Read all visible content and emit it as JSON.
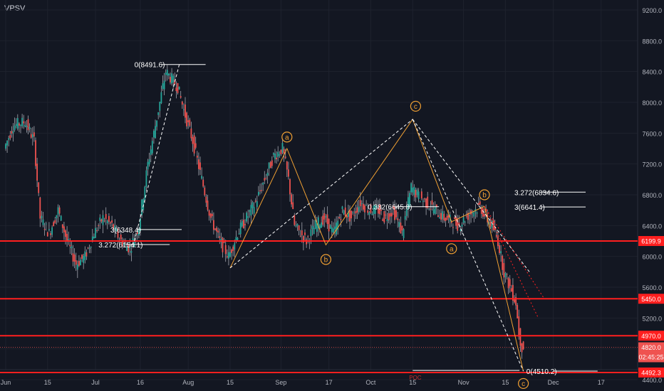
{
  "symbol": "VPSV",
  "colors": {
    "background": "#131722",
    "grid": "#1e222d",
    "up": "#26a69a",
    "down": "#ef5350",
    "wick": "#a3a6af",
    "level": "#ff1f1f",
    "wave": "#f0a033",
    "guide": "#ffffff",
    "poc": "#c03030"
  },
  "chart_data": {
    "type": "candlestick",
    "ylim": [
      4400,
      9200
    ],
    "y_ticks": [
      "9200.0",
      "8800.0",
      "8400.0",
      "8000.0",
      "7600.0",
      "7200.0",
      "6800.0",
      "6400.0",
      "6000.0",
      "5600.0",
      "5200.0",
      "4800.0",
      "4400.0"
    ],
    "x_ticks": [
      {
        "label": "Jun",
        "day": 0
      },
      {
        "label": "15",
        "day": 14
      },
      {
        "label": "Jul",
        "day": 30
      },
      {
        "label": "16",
        "day": 45
      },
      {
        "label": "Aug",
        "day": 61
      },
      {
        "label": "15",
        "day": 75
      },
      {
        "label": "Sep",
        "day": 92
      },
      {
        "label": "17",
        "day": 108
      },
      {
        "label": "Oct",
        "day": 122
      },
      {
        "label": "15",
        "day": 136
      },
      {
        "label": "Nov",
        "day": 153
      },
      {
        "label": "15",
        "day": 167
      },
      {
        "label": "Dec",
        "day": 183
      },
      {
        "label": "17",
        "day": 199
      }
    ],
    "price_path": [
      [
        0,
        7400
      ],
      [
        3,
        7700
      ],
      [
        7,
        7750
      ],
      [
        10,
        7500
      ],
      [
        12,
        6500
      ],
      [
        15,
        6300
      ],
      [
        18,
        6600
      ],
      [
        21,
        6200
      ],
      [
        24,
        5900
      ],
      [
        27,
        6000
      ],
      [
        30,
        6300
      ],
      [
        33,
        6500
      ],
      [
        36,
        6400
      ],
      [
        39,
        6200
      ],
      [
        42,
        6100
      ],
      [
        45,
        6400
      ],
      [
        48,
        7200
      ],
      [
        51,
        7800
      ],
      [
        54,
        8400
      ],
      [
        56,
        8300
      ],
      [
        58,
        8200
      ],
      [
        60,
        7900
      ],
      [
        63,
        7500
      ],
      [
        66,
        7000
      ],
      [
        69,
        6500
      ],
      [
        72,
        6200
      ],
      [
        75,
        6000
      ],
      [
        78,
        6300
      ],
      [
        81,
        6500
      ],
      [
        84,
        6700
      ],
      [
        87,
        7000
      ],
      [
        90,
        7300
      ],
      [
        93,
        7400
      ],
      [
        95,
        7000
      ],
      [
        97,
        6400
      ],
      [
        99,
        6300
      ],
      [
        101,
        6200
      ],
      [
        104,
        6400
      ],
      [
        107,
        6500
      ],
      [
        110,
        6300
      ],
      [
        113,
        6600
      ],
      [
        116,
        6500
      ],
      [
        119,
        6700
      ],
      [
        122,
        6600
      ],
      [
        125,
        6600
      ],
      [
        127,
        6500
      ],
      [
        130,
        6600
      ],
      [
        133,
        6300
      ],
      [
        135,
        6700
      ],
      [
        136,
        6900
      ],
      [
        138,
        6800
      ],
      [
        141,
        6700
      ],
      [
        144,
        6600
      ],
      [
        147,
        6500
      ],
      [
        150,
        6450
      ],
      [
        152,
        6400
      ],
      [
        154,
        6500
      ],
      [
        157,
        6600
      ],
      [
        159,
        6650
      ],
      [
        161,
        6500
      ],
      [
        163,
        6400
      ],
      [
        165,
        6200
      ],
      [
        167,
        5800
      ],
      [
        169,
        5600
      ],
      [
        171,
        5400
      ],
      [
        172,
        5000
      ],
      [
        173,
        4820
      ]
    ],
    "horizontal_levels": [
      {
        "value": 6199.9,
        "label": "6199.9"
      },
      {
        "value": 5450.0,
        "label": "5450.0"
      },
      {
        "value": 4970.0,
        "label": "4970.0"
      },
      {
        "value": 4492.3,
        "label": "4492.3"
      }
    ],
    "last_price": {
      "value": 4820.0,
      "label": "4820.0",
      "countdown": "02:45:25"
    },
    "fib_labels": [
      {
        "text": "0(8491.6)",
        "day": 43,
        "value": 8491.6
      },
      {
        "text": "3(6348.4)",
        "day": 35,
        "value": 6348.4
      },
      {
        "text": "3.272(6154.1)",
        "day": 31,
        "value": 6154.1
      },
      {
        "text": "0.382(6645.8)",
        "day": 121,
        "value": 6645.8
      },
      {
        "text": "3.272(6834.6)",
        "day": 170,
        "value": 6834.6
      },
      {
        "text": "3(6641.4)",
        "day": 170,
        "value": 6641.4
      },
      {
        "text": "0(4510.2)",
        "day": 174,
        "value": 4510.2
      }
    ],
    "wave_labels": [
      {
        "text": "a",
        "day": 94,
        "value": 7550
      },
      {
        "text": "b",
        "day": 107,
        "value": 5960
      },
      {
        "text": "c",
        "day": 137,
        "value": 7950
      },
      {
        "text": "a",
        "day": 149,
        "value": 6100
      },
      {
        "text": "b",
        "day": 160,
        "value": 6800
      },
      {
        "text": "c",
        "day": 173,
        "value": 4350
      }
    ],
    "poc_label": "POC"
  }
}
